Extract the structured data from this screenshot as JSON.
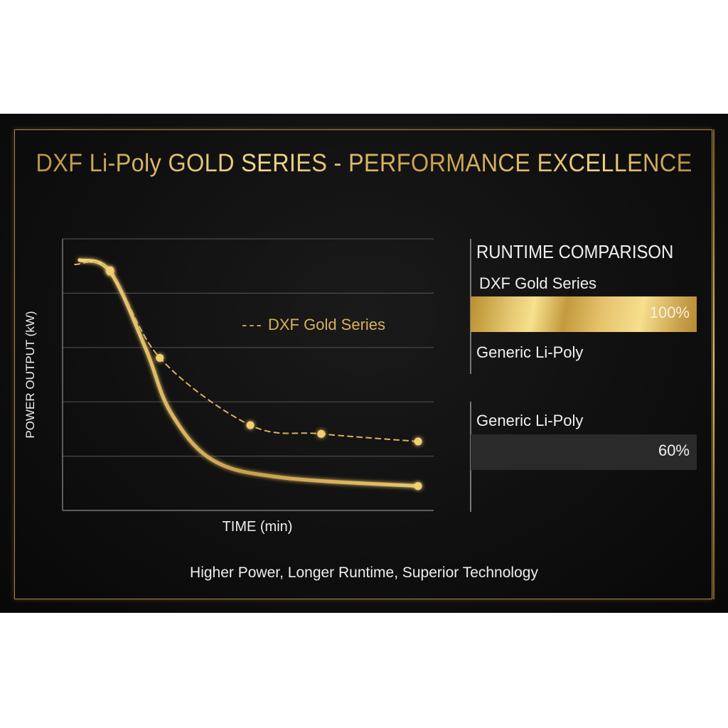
{
  "title": "DXF Li-Poly GOLD SERIES - PERFORMANCE EXCELLENCE",
  "tagline": "Higher Power, Longer Runtime, Superior Technology",
  "colors": {
    "gold": "#d8b25e",
    "background": "#0d0d0d",
    "grid": "#4a4a4a",
    "generic_bar": "#2a2a2a"
  },
  "chart_data": [
    {
      "type": "line",
      "xlabel": "TIME (min)",
      "ylabel": "POWER OUTPUT (kW)",
      "xlim": [
        0,
        10
      ],
      "ylim": [
        0,
        5
      ],
      "grid": true,
      "legend": {
        "placement": "center-right",
        "entries": [
          "DXF Gold Series"
        ]
      },
      "series": [
        {
          "style": "solid",
          "x": [
            0.46,
            1.28,
            2.24,
            2.91,
            4.06,
            5.98,
            9.58
          ],
          "y": [
            4.61,
            4.4,
            2.98,
            1.81,
            0.92,
            0.6,
            0.45
          ],
          "markers_at": [
            1.28,
            9.58
          ]
        },
        {
          "name": "DXF Gold Series",
          "style": "dashed",
          "x": [
            0.33,
            1.28,
            2.62,
            5.06,
            6.97,
            9.58
          ],
          "y": [
            4.53,
            4.42,
            2.81,
            1.57,
            1.41,
            1.27
          ],
          "markers_at": [
            1.28,
            2.62,
            5.06,
            6.97,
            9.58
          ]
        }
      ]
    },
    {
      "type": "bar",
      "title": "RUNTIME COMPARISON",
      "orientation": "horizontal",
      "categories": [
        "DXF Gold Series",
        "Generic Li-Poly"
      ],
      "values": [
        100,
        60
      ],
      "value_labels": [
        "100%",
        "60%"
      ],
      "extra_label": "Generic Li-Poly"
    }
  ]
}
